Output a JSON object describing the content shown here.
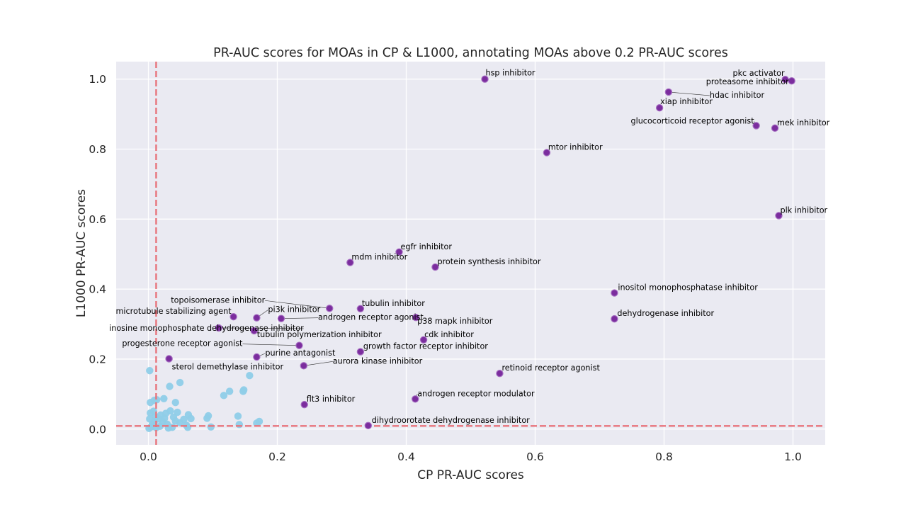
{
  "chart_data": {
    "type": "scatter",
    "title": "PR-AUC scores for MOAs in CP & L1000, annotating MOAs above 0.2 PR-AUC scores",
    "xlabel": "CP PR-AUC scores",
    "ylabel": "L1000 PR-AUC scores",
    "xlim": [
      -0.05,
      1.05
    ],
    "ylim": [
      -0.045,
      1.05
    ],
    "x_ticks": [
      "0.0",
      "0.2",
      "0.4",
      "0.6",
      "0.8",
      "1.0"
    ],
    "y_ticks": [
      "0.0",
      "0.2",
      "0.4",
      "0.6",
      "0.8",
      "1.0"
    ],
    "grid": true,
    "threshold_lines": {
      "x": 0.012,
      "y": 0.009,
      "color": "#e8747c",
      "style": "dashed"
    },
    "colors": {
      "background": "#eaeaf2",
      "grid": "#ffffff",
      "annotated": "#7b2d9e",
      "annotated_edge": "#a46cc0",
      "other": "#8fcde8"
    },
    "annotated": [
      {
        "label": "hsp inhibitor",
        "x": 0.522,
        "y": 1.0
      },
      {
        "label": "pkc activator",
        "x": 0.988,
        "y": 0.999
      },
      {
        "label": "proteasome inhibitor",
        "x": 0.998,
        "y": 0.995
      },
      {
        "label": "hdac inhibitor",
        "x": 0.807,
        "y": 0.963
      },
      {
        "label": "xiap inhibitor",
        "x": 0.793,
        "y": 0.918
      },
      {
        "label": "glucocorticoid receptor agonist",
        "x": 0.943,
        "y": 0.867
      },
      {
        "label": "mek inhibitor",
        "x": 0.972,
        "y": 0.86
      },
      {
        "label": "mtor inhibitor",
        "x": 0.618,
        "y": 0.79
      },
      {
        "label": "plk inhibitor",
        "x": 0.978,
        "y": 0.61
      },
      {
        "label": "egfr inhibitor",
        "x": 0.389,
        "y": 0.506
      },
      {
        "label": "mdm inhibitor",
        "x": 0.313,
        "y": 0.476
      },
      {
        "label": "protein synthesis inhibitor",
        "x": 0.445,
        "y": 0.463
      },
      {
        "label": "inositol monophosphatase inhibitor",
        "x": 0.723,
        "y": 0.389
      },
      {
        "label": "topoisomerase inhibitor",
        "x": 0.281,
        "y": 0.345
      },
      {
        "label": "tubulin inhibitor",
        "x": 0.329,
        "y": 0.344
      },
      {
        "label": "microtubule stabilizing agent",
        "x": 0.132,
        "y": 0.321
      },
      {
        "label": "pi3k inhibitor",
        "x": 0.168,
        "y": 0.318
      },
      {
        "label": "androgen receptor agonist",
        "x": 0.206,
        "y": 0.316
      },
      {
        "label": "p38 mapk inhibitor",
        "x": 0.415,
        "y": 0.319
      },
      {
        "label": "dehydrogenase inhibitor",
        "x": 0.723,
        "y": 0.315
      },
      {
        "label": "inosine monophosphate dehydrogenase inhibitor",
        "x": 0.109,
        "y": 0.289
      },
      {
        "label": "tubulin polymerization inhibitor",
        "x": 0.164,
        "y": 0.281
      },
      {
        "label": "cdk inhibitor",
        "x": 0.427,
        "y": 0.255
      },
      {
        "label": "progesterone receptor agonist",
        "x": 0.234,
        "y": 0.239
      },
      {
        "label": "growth factor receptor inhibitor",
        "x": 0.329,
        "y": 0.221
      },
      {
        "label": "purine antagonist",
        "x": 0.168,
        "y": 0.206
      },
      {
        "label": "sterol demethylase inhibitor",
        "x": 0.032,
        "y": 0.201
      },
      {
        "label": "aurora kinase inhibitor",
        "x": 0.241,
        "y": 0.181
      },
      {
        "label": "retinoid receptor agonist",
        "x": 0.545,
        "y": 0.159
      },
      {
        "label": "androgen receptor modulator",
        "x": 0.414,
        "y": 0.086
      },
      {
        "label": "flt3 inhibitor",
        "x": 0.242,
        "y": 0.07
      },
      {
        "label": "dihydroorotate dehydrogenase inhibitor",
        "x": 0.341,
        "y": 0.01
      }
    ],
    "other_points": [
      [
        0.002,
        0.167
      ],
      [
        0.033,
        0.122
      ],
      [
        0.049,
        0.133
      ],
      [
        0.157,
        0.153
      ],
      [
        0.147,
        0.108
      ],
      [
        0.148,
        0.112
      ],
      [
        0.126,
        0.108
      ],
      [
        0.117,
        0.096
      ],
      [
        0.042,
        0.076
      ],
      [
        0.024,
        0.087
      ],
      [
        0.013,
        0.084
      ],
      [
        0.009,
        0.082
      ],
      [
        0.003,
        0.076
      ],
      [
        0.003,
        0.046
      ],
      [
        0.008,
        0.051
      ],
      [
        0.019,
        0.04
      ],
      [
        0.027,
        0.045
      ],
      [
        0.034,
        0.052
      ],
      [
        0.045,
        0.048
      ],
      [
        0.062,
        0.041
      ],
      [
        0.066,
        0.03
      ],
      [
        0.093,
        0.038
      ],
      [
        0.091,
        0.031
      ],
      [
        0.139,
        0.037
      ],
      [
        0.172,
        0.022
      ],
      [
        0.168,
        0.017
      ],
      [
        0.141,
        0.013
      ],
      [
        0.097,
        0.006
      ],
      [
        0.061,
        0.005
      ],
      [
        0.059,
        0.011
      ],
      [
        0.049,
        0.018
      ],
      [
        0.055,
        0.028
      ],
      [
        0.042,
        0.023
      ],
      [
        0.037,
        0.005
      ],
      [
        0.031,
        0.003
      ],
      [
        0.029,
        0.014
      ],
      [
        0.022,
        0.021
      ],
      [
        0.016,
        0.029
      ],
      [
        0.011,
        0.035
      ],
      [
        0.009,
        0.021
      ],
      [
        0.006,
        0.013
      ],
      [
        0.004,
        0.006
      ],
      [
        0.001,
        0.002
      ],
      [
        0.002,
        0.029
      ],
      [
        0.018,
        0.008
      ],
      [
        0.025,
        0.031
      ],
      [
        0.039,
        0.034
      ],
      [
        0.012,
        0.004
      ]
    ]
  }
}
